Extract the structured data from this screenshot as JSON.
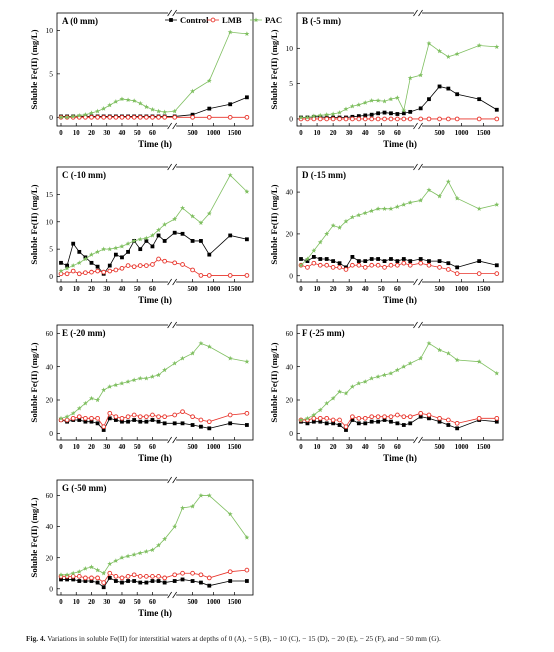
{
  "figure": {
    "caption_label": "Fig. 4.",
    "caption_text": " Variations in soluble Fe(II) for interstitial waters at depths of 0 (A), − 5 (B), − 10 (C), − 15 (D), − 20 (E), − 25 (F), and − 50 mm (G)."
  },
  "series_styles": [
    {
      "name": "Control",
      "color": "#000000",
      "marker": "square"
    },
    {
      "name": "LMB",
      "color": "#e8332a",
      "marker": "circle-open"
    },
    {
      "name": "PAC",
      "color": "#7fbf60",
      "marker": "star"
    }
  ],
  "chart_data": [
    {
      "type": "line",
      "title": "A (0 mm)",
      "xlabel": "Time (h)",
      "ylabel": "Soluble Fe(II) (mg/L)",
      "x_axis": "broken: 0–70 h linear, then 500–1800 h",
      "x_ticks_left": [
        0,
        10,
        20,
        30,
        40,
        50,
        60
      ],
      "x_ticks_right": [
        500,
        1000,
        1500
      ],
      "ylim": [
        -1,
        12
      ],
      "yticks": [
        0,
        5,
        10
      ],
      "legend": "top",
      "legend_labels": [
        "Control",
        "LMB",
        "PAC"
      ],
      "x": [
        0,
        4,
        8,
        12,
        16,
        20,
        24,
        28,
        32,
        36,
        40,
        44,
        48,
        52,
        56,
        60,
        64,
        68,
        72,
        500,
        900,
        1400,
        1800
      ],
      "series": [
        {
          "name": "Control",
          "values": [
            0.1,
            0.1,
            0.1,
            0.1,
            0.1,
            0.1,
            0.1,
            0.1,
            0.1,
            0.1,
            0.1,
            0.1,
            0.1,
            0.1,
            0.1,
            0.1,
            0.1,
            0.1,
            0.1,
            0.3,
            1.0,
            1.5,
            2.3
          ]
        },
        {
          "name": "LMB",
          "values": [
            0,
            0,
            0,
            0,
            0,
            0,
            0,
            0,
            0,
            0,
            0,
            0,
            0,
            0,
            0,
            0,
            0,
            0,
            0,
            0,
            0,
            0,
            0
          ]
        },
        {
          "name": "PAC",
          "values": [
            0,
            0,
            0.1,
            0.2,
            0.3,
            0.5,
            0.7,
            1.0,
            1.4,
            1.8,
            2.1,
            2.0,
            1.9,
            1.6,
            1.2,
            0.9,
            0.7,
            0.6,
            0.7,
            3.0,
            4.2,
            9.8,
            9.6
          ]
        }
      ]
    },
    {
      "type": "line",
      "title": "B (-5 mm)",
      "xlabel": "Time (h)",
      "ylabel": "Soluble Fe(II) (mg/L)",
      "x_axis": "broken: 0–70 h linear, then 500–1800 h",
      "x_ticks_left": [
        0,
        10,
        20,
        30,
        40,
        50,
        60
      ],
      "x_ticks_right": [
        500,
        1000,
        1500
      ],
      "ylim": [
        -1,
        15
      ],
      "yticks": [
        0,
        5,
        10
      ],
      "legend": "none",
      "x": [
        0,
        4,
        8,
        12,
        16,
        20,
        24,
        28,
        32,
        36,
        40,
        44,
        48,
        52,
        56,
        60,
        64,
        68,
        72,
        260,
        500,
        700,
        900,
        1400,
        1800
      ],
      "series": [
        {
          "name": "Control",
          "values": [
            0.2,
            0.2,
            0.3,
            0.3,
            0.2,
            0.2,
            0.2,
            0.2,
            0.3,
            0.4,
            0.5,
            0.6,
            0.8,
            0.9,
            0.8,
            0.7,
            0.8,
            1.0,
            1.5,
            2.8,
            4.6,
            4.3,
            3.5,
            2.8,
            1.3
          ]
        },
        {
          "name": "LMB",
          "values": [
            0,
            0,
            0,
            0,
            0,
            0,
            0,
            0,
            0,
            0,
            0,
            0,
            0,
            0,
            0,
            0,
            0,
            0,
            0,
            0,
            0,
            0,
            0,
            0,
            0
          ]
        },
        {
          "name": "PAC",
          "values": [
            0.2,
            0.2,
            0.4,
            0.5,
            0.6,
            0.7,
            0.9,
            1.4,
            1.8,
            2.0,
            2.3,
            2.6,
            2.6,
            2.5,
            2.8,
            3.0,
            1.2,
            5.8,
            6.2,
            10.7,
            9.6,
            8.8,
            9.2,
            10.4,
            10.2
          ]
        }
      ]
    },
    {
      "type": "line",
      "title": "C (-10 mm)",
      "xlabel": "Time (h)",
      "ylabel": "Soluble Fe(II) (mg/L)",
      "x_axis": "broken: 0–70 h linear, then 500–1800 h",
      "x_ticks_left": [
        0,
        10,
        20,
        30,
        40,
        50,
        60
      ],
      "x_ticks_right": [
        500,
        1000,
        1500
      ],
      "ylim": [
        -1,
        20
      ],
      "yticks": [
        0,
        5,
        10,
        15
      ],
      "legend": "none",
      "x": [
        0,
        4,
        8,
        12,
        16,
        20,
        24,
        28,
        32,
        36,
        40,
        44,
        48,
        52,
        56,
        60,
        64,
        68,
        72,
        260,
        500,
        700,
        900,
        1400,
        1800
      ],
      "series": [
        {
          "name": "Control",
          "values": [
            2.5,
            2.0,
            6.0,
            4.5,
            3.5,
            2.5,
            1.8,
            0.5,
            2.0,
            4.0,
            3.5,
            4.5,
            6.5,
            5.0,
            6.5,
            5.5,
            7.5,
            6.5,
            8.0,
            7.8,
            6.5,
            6.5,
            4.0,
            7.5,
            6.8
          ]
        },
        {
          "name": "LMB",
          "values": [
            0.5,
            0.5,
            1.0,
            0.5,
            0.7,
            0.8,
            1.0,
            0.8,
            1.0,
            1.2,
            1.5,
            2.0,
            1.8,
            2.0,
            2.0,
            2.2,
            3.2,
            2.8,
            2.5,
            2.2,
            1.2,
            0.2,
            0.2,
            0.2,
            0.2
          ]
        },
        {
          "name": "PAC",
          "values": [
            1.0,
            1.5,
            2.0,
            2.5,
            3.2,
            4.0,
            4.5,
            5.0,
            5.0,
            5.2,
            5.5,
            6.0,
            6.5,
            6.8,
            7.0,
            7.5,
            8.5,
            9.5,
            10.5,
            12.5,
            11.0,
            9.8,
            11.5,
            18.5,
            15.5
          ]
        }
      ]
    },
    {
      "type": "line",
      "title": "D (-15 mm)",
      "xlabel": "Time (h)",
      "ylabel": "Soluble Fe(II) (mg/L)",
      "x_axis": "broken: 0–70 h linear, then 500–1800 h",
      "x_ticks_left": [
        0,
        10,
        20,
        30,
        40,
        50,
        60
      ],
      "x_ticks_right": [
        500,
        1000,
        1500
      ],
      "ylim": [
        -3,
        52
      ],
      "yticks": [
        0,
        20,
        40
      ],
      "legend": "none",
      "x": [
        0,
        4,
        8,
        12,
        16,
        20,
        24,
        28,
        32,
        36,
        40,
        44,
        48,
        52,
        56,
        60,
        64,
        68,
        72,
        260,
        500,
        700,
        900,
        1400,
        1800
      ],
      "series": [
        {
          "name": "Control",
          "values": [
            8,
            7,
            9,
            8,
            8,
            7,
            6,
            4,
            9,
            7,
            7,
            8,
            8,
            7,
            8,
            7,
            8,
            7,
            8,
            7,
            7,
            6,
            4,
            7,
            5
          ]
        },
        {
          "name": "LMB",
          "values": [
            5,
            4,
            6,
            5,
            5,
            4,
            4,
            3,
            5,
            5,
            4,
            5,
            5,
            4,
            5,
            5,
            6,
            5,
            6,
            5,
            4,
            3,
            1,
            1,
            1
          ]
        },
        {
          "name": "PAC",
          "values": [
            5,
            8,
            12,
            16,
            20,
            24,
            23,
            26,
            28,
            29,
            30,
            31,
            32,
            32,
            32,
            33,
            34,
            35,
            36,
            41,
            38,
            45,
            37,
            32,
            34
          ]
        }
      ]
    },
    {
      "type": "line",
      "title": "E (-20 mm)",
      "xlabel": "Time (h)",
      "ylabel": "Soluble Fe(II) (mg/L)",
      "x_axis": "broken: 0–70 h linear, then 500–1800 h",
      "x_ticks_left": [
        0,
        10,
        20,
        30,
        40,
        50,
        60
      ],
      "x_ticks_right": [
        500,
        1000,
        1500
      ],
      "ylim": [
        -4,
        65
      ],
      "yticks": [
        0,
        20,
        40,
        60
      ],
      "legend": "none",
      "x": [
        0,
        4,
        8,
        12,
        16,
        20,
        24,
        28,
        32,
        36,
        40,
        44,
        48,
        52,
        56,
        60,
        64,
        68,
        72,
        260,
        500,
        700,
        900,
        1400,
        1800
      ],
      "series": [
        {
          "name": "Control",
          "values": [
            8,
            7,
            8,
            8,
            7,
            7,
            6,
            2,
            9,
            8,
            7,
            7,
            8,
            7,
            7,
            8,
            7,
            6,
            6,
            6,
            5,
            4,
            3,
            6,
            5
          ]
        },
        {
          "name": "LMB",
          "values": [
            8,
            8,
            9,
            10,
            9,
            9,
            9,
            4,
            12,
            10,
            9,
            10,
            11,
            10,
            10,
            11,
            10,
            10,
            11,
            13,
            10,
            8,
            7,
            11,
            12
          ]
        },
        {
          "name": "PAC",
          "values": [
            9,
            10,
            12,
            15,
            18,
            21,
            20,
            26,
            28,
            29,
            30,
            31,
            32,
            33,
            33,
            34,
            35,
            38,
            42,
            45,
            48,
            54,
            52,
            45,
            43
          ]
        }
      ]
    },
    {
      "type": "line",
      "title": "F (-25 mm)",
      "xlabel": "Time (h)",
      "ylabel": "Soluble Fe(II) (mg/L)",
      "x_axis": "broken: 0–70 h linear, then 500–1800 h",
      "x_ticks_left": [
        0,
        10,
        20,
        30,
        40,
        50,
        60
      ],
      "x_ticks_right": [
        500,
        1000,
        1500
      ],
      "ylim": [
        -4,
        65
      ],
      "yticks": [
        0,
        20,
        40,
        60
      ],
      "legend": "none",
      "x": [
        0,
        4,
        8,
        12,
        16,
        20,
        24,
        28,
        32,
        36,
        40,
        44,
        48,
        52,
        56,
        60,
        64,
        68,
        72,
        260,
        500,
        700,
        900,
        1400,
        1800
      ],
      "series": [
        {
          "name": "Control",
          "values": [
            7,
            6,
            7,
            7,
            6,
            6,
            5,
            2,
            8,
            6,
            6,
            7,
            7,
            8,
            7,
            6,
            5,
            6,
            10,
            9,
            7,
            5,
            3,
            8,
            7
          ]
        },
        {
          "name": "LMB",
          "values": [
            8,
            8,
            9,
            9,
            9,
            8,
            8,
            4,
            10,
            9,
            9,
            10,
            10,
            10,
            10,
            11,
            10,
            10,
            12,
            11,
            9,
            8,
            6,
            9,
            9
          ]
        },
        {
          "name": "PAC",
          "values": [
            8,
            9,
            11,
            14,
            18,
            21,
            25,
            24,
            28,
            30,
            31,
            33,
            34,
            35,
            36,
            38,
            40,
            42,
            45,
            54,
            50,
            48,
            44,
            43,
            36
          ]
        }
      ]
    },
    {
      "type": "line",
      "title": "G (-50 mm)",
      "xlabel": "Time (h)",
      "ylabel": "Soluble Fe(II) (mg/L)",
      "x_axis": "broken: 0–70 h linear, then 500–1800 h",
      "x_ticks_left": [
        0,
        10,
        20,
        30,
        40,
        50,
        60
      ],
      "x_ticks_right": [
        500,
        1000,
        1500
      ],
      "ylim": [
        -4,
        70
      ],
      "yticks": [
        0,
        20,
        40,
        60
      ],
      "legend": "none",
      "x": [
        0,
        4,
        8,
        12,
        16,
        20,
        24,
        28,
        32,
        36,
        40,
        44,
        48,
        52,
        56,
        60,
        64,
        68,
        72,
        260,
        500,
        700,
        900,
        1400,
        1800
      ],
      "series": [
        {
          "name": "Control",
          "values": [
            6,
            6,
            6,
            5,
            5,
            5,
            4,
            1,
            7,
            5,
            4,
            5,
            5,
            4,
            4,
            5,
            5,
            4,
            5,
            6,
            5,
            4,
            2,
            5,
            5
          ]
        },
        {
          "name": "LMB",
          "values": [
            8,
            8,
            8,
            8,
            7,
            7,
            7,
            4,
            10,
            8,
            7,
            8,
            9,
            8,
            8,
            8,
            8,
            7,
            9,
            10,
            10,
            9,
            7,
            11,
            12
          ]
        },
        {
          "name": "PAC",
          "values": [
            9,
            9,
            10,
            11,
            13,
            14,
            12,
            10,
            16,
            18,
            20,
            21,
            22,
            23,
            24,
            25,
            28,
            32,
            40,
            52,
            53,
            60,
            60,
            48,
            33
          ]
        }
      ]
    }
  ]
}
